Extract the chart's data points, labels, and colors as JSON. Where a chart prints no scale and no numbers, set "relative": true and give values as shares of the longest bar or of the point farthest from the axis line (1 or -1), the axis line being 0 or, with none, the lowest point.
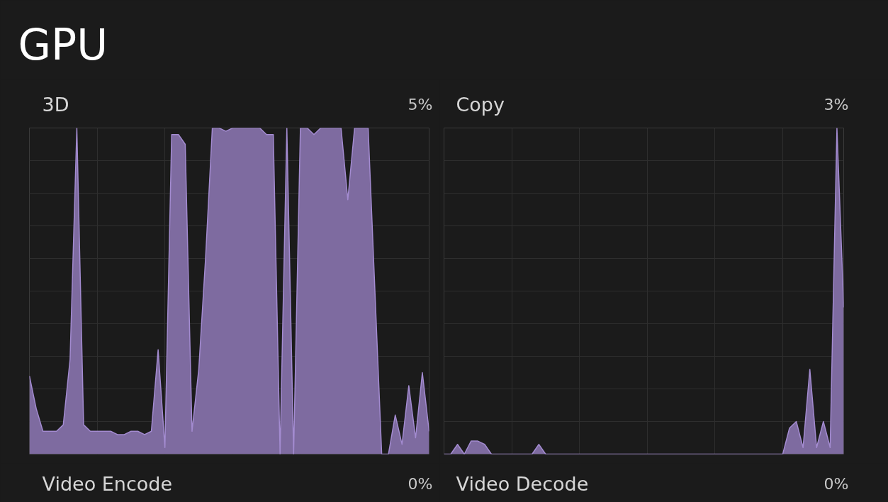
{
  "chart_data": [
    {
      "type": "other",
      "title": "GPU"
    },
    {
      "type": "area",
      "title": "3D",
      "subtitle": "5%",
      "relative": true,
      "grid": true,
      "categories": [
        null,
        null,
        null,
        null,
        null,
        null,
        null,
        null,
        null,
        null,
        null,
        null,
        null,
        null,
        null,
        null,
        null,
        null,
        null,
        null,
        null,
        null,
        null,
        null,
        null,
        null,
        null,
        null,
        null,
        null,
        null,
        null,
        null,
        null,
        null,
        null,
        null,
        null,
        null,
        null,
        null,
        null,
        null,
        null,
        null,
        null,
        null,
        null,
        null,
        null,
        null,
        null,
        null,
        null,
        null,
        null,
        null,
        null,
        null,
        null
      ],
      "series": [
        {
          "color": "#7e6ba0",
          "values": [
            0.24,
            0.14,
            0.07,
            0.07,
            0.07,
            0.09,
            0.29,
            1.0,
            0.09,
            0.07,
            0.07,
            0.07,
            0.07,
            0.06,
            0.06,
            0.07,
            0.07,
            0.06,
            0.07,
            0.32,
            0.02,
            0.98,
            0.98,
            0.95,
            0.07,
            0.26,
            0.6,
            1.0,
            1.0,
            0.99,
            1.0,
            1.0,
            1.0,
            1.0,
            1.0,
            0.98,
            0.98,
            0,
            1.0,
            0,
            1.0,
            1.0,
            0.98,
            1.0,
            1.0,
            1.0,
            1.0,
            0.78,
            1.0,
            1.0,
            1.0,
            0.5,
            0,
            0,
            0.12,
            0.03,
            0.21,
            0.05,
            0.25,
            0.07
          ]
        }
      ]
    },
    {
      "type": "area",
      "title": "Copy",
      "subtitle": "3%",
      "relative": true,
      "grid": true,
      "categories": [
        null,
        null,
        null,
        null,
        null,
        null,
        null,
        null,
        null,
        null,
        null,
        null,
        null,
        null,
        null,
        null,
        null,
        null,
        null,
        null,
        null,
        null,
        null,
        null,
        null,
        null,
        null,
        null,
        null,
        null,
        null,
        null,
        null,
        null,
        null,
        null,
        null,
        null,
        null,
        null,
        null,
        null,
        null,
        null,
        null,
        null,
        null,
        null,
        null,
        null,
        null,
        null,
        null,
        null,
        null,
        null,
        null,
        null,
        null,
        null
      ],
      "series": [
        {
          "color": "#7e6ba0",
          "values": [
            0,
            0,
            0.03,
            0,
            0.04,
            0.04,
            0.03,
            0,
            0,
            0,
            0,
            0,
            0,
            0,
            0.03,
            0,
            0,
            0,
            0,
            0,
            0,
            0,
            0,
            0,
            0,
            0,
            0,
            0,
            0,
            0,
            0,
            0,
            0,
            0,
            0,
            0,
            0,
            0,
            0,
            0,
            0,
            0,
            0,
            0,
            0,
            0,
            0,
            0,
            0,
            0,
            0,
            0.08,
            0.1,
            0.02,
            0.26,
            0.02,
            0.1,
            0.02,
            1.0,
            0.45
          ]
        }
      ]
    },
    {
      "type": "other",
      "title": "Video Encode",
      "subtitle": "0%"
    },
    {
      "type": "other",
      "title": "Video Decode",
      "subtitle": "0%"
    }
  ]
}
